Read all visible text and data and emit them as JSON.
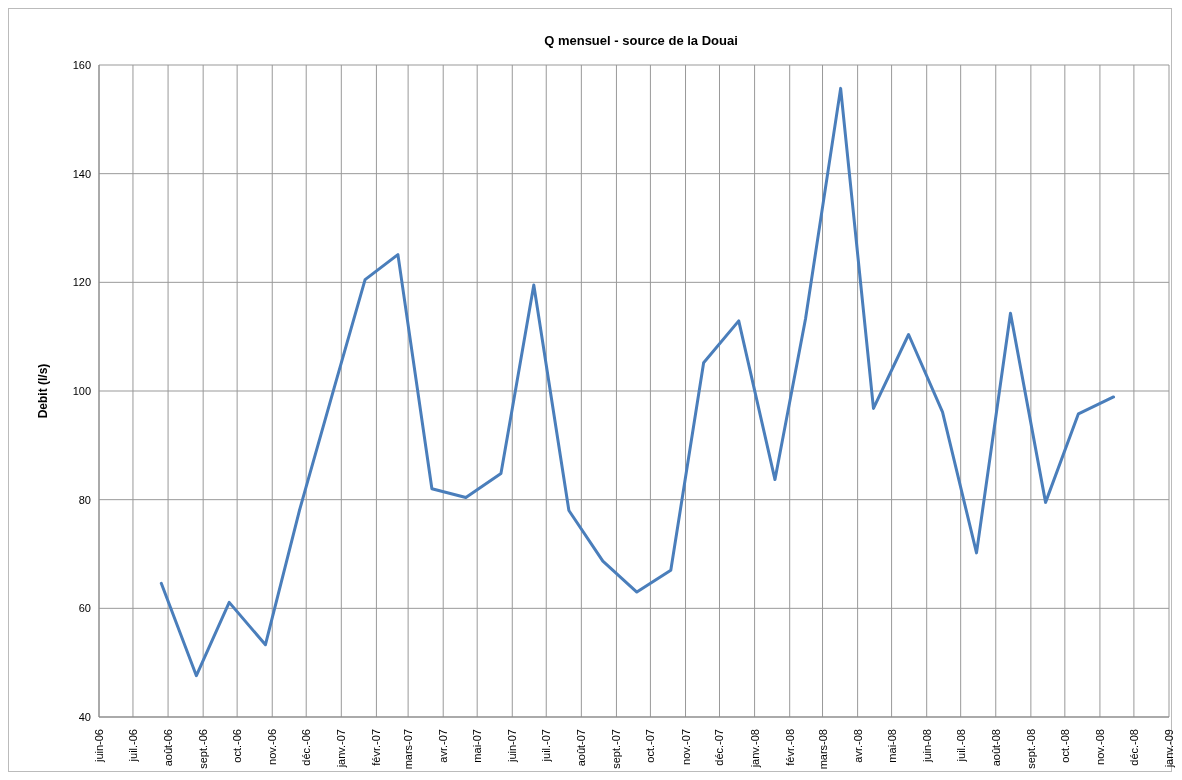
{
  "chart_data": {
    "type": "line",
    "title": "Q mensuel - source de la Douai",
    "ylabel": "Debit (l/s)",
    "x": [
      "2006-07-26",
      "2006-08-26",
      "2006-09-24",
      "2006-10-26",
      "2006-11-25",
      "2006-12-26",
      "2007-01-22",
      "2007-02-20",
      "2007-03-22",
      "2007-04-21",
      "2007-05-22",
      "2007-06-20",
      "2007-07-21",
      "2007-08-20",
      "2007-09-19",
      "2007-10-19",
      "2007-11-17",
      "2007-12-18",
      "2008-01-19",
      "2008-02-15",
      "2008-03-17",
      "2008-04-15",
      "2008-05-16",
      "2008-06-15",
      "2008-07-15",
      "2008-08-14",
      "2008-09-14",
      "2008-10-13",
      "2008-11-13"
    ],
    "series": [
      {
        "color": "#4a7ebb",
        "values": [
          64.6,
          47.6,
          61.1,
          53.3,
          78,
          100.8,
          120.5,
          125.1,
          82,
          80.4,
          84.8,
          119.5,
          78,
          68.7,
          63,
          67,
          105.2,
          112.9,
          83.7,
          113.3,
          155.7,
          96.8,
          110.4,
          96.1,
          70.2,
          114.3,
          79.5,
          95.8,
          98.9
        ]
      }
    ],
    "xlim": [
      "2006-06",
      "2009-01"
    ],
    "xticks": [
      {
        "value": "2006-06",
        "label": "juin-06"
      },
      {
        "value": "2006-07",
        "label": "juil.-06"
      },
      {
        "value": "2006-08",
        "label": "août-06"
      },
      {
        "value": "2006-09",
        "label": "sept.-06"
      },
      {
        "value": "2006-10",
        "label": "oct.-06"
      },
      {
        "value": "2006-11",
        "label": "nov.-06"
      },
      {
        "value": "2006-12",
        "label": "déc.-06"
      },
      {
        "value": "2007-01",
        "label": "janv.-07"
      },
      {
        "value": "2007-02",
        "label": "févr.-07"
      },
      {
        "value": "2007-03",
        "label": "mars-07"
      },
      {
        "value": "2007-04",
        "label": "avr.-07"
      },
      {
        "value": "2007-05",
        "label": "mai-07"
      },
      {
        "value": "2007-06",
        "label": "juin-07"
      },
      {
        "value": "2007-07",
        "label": "juil.-07"
      },
      {
        "value": "2007-08",
        "label": "août-07"
      },
      {
        "value": "2007-09",
        "label": "sept.-07"
      },
      {
        "value": "2007-10",
        "label": "oct.-07"
      },
      {
        "value": "2007-11",
        "label": "nov.-07"
      },
      {
        "value": "2007-12",
        "label": "déc.-07"
      },
      {
        "value": "2008-01",
        "label": "janv.-08"
      },
      {
        "value": "2008-02",
        "label": "févr.-08"
      },
      {
        "value": "2008-03",
        "label": "mars-08"
      },
      {
        "value": "2008-04",
        "label": "avr.-08"
      },
      {
        "value": "2008-05",
        "label": "mai-08"
      },
      {
        "value": "2008-06",
        "label": "juin-08"
      },
      {
        "value": "2008-07",
        "label": "juil.-08"
      },
      {
        "value": "2008-08",
        "label": "août-08"
      },
      {
        "value": "2008-09",
        "label": "sept.-08"
      },
      {
        "value": "2008-10",
        "label": "oct.-08"
      },
      {
        "value": "2008-11",
        "label": "nov.-08"
      },
      {
        "value": "2008-12",
        "label": "déc.-08"
      },
      {
        "value": "2009-01",
        "label": "janv.-09"
      }
    ],
    "ylim": [
      40,
      160
    ],
    "yticks": [
      40,
      60,
      80,
      100,
      120,
      140,
      160
    ],
    "grid": true,
    "marker": "none",
    "line_style": "solid",
    "legend": false
  }
}
